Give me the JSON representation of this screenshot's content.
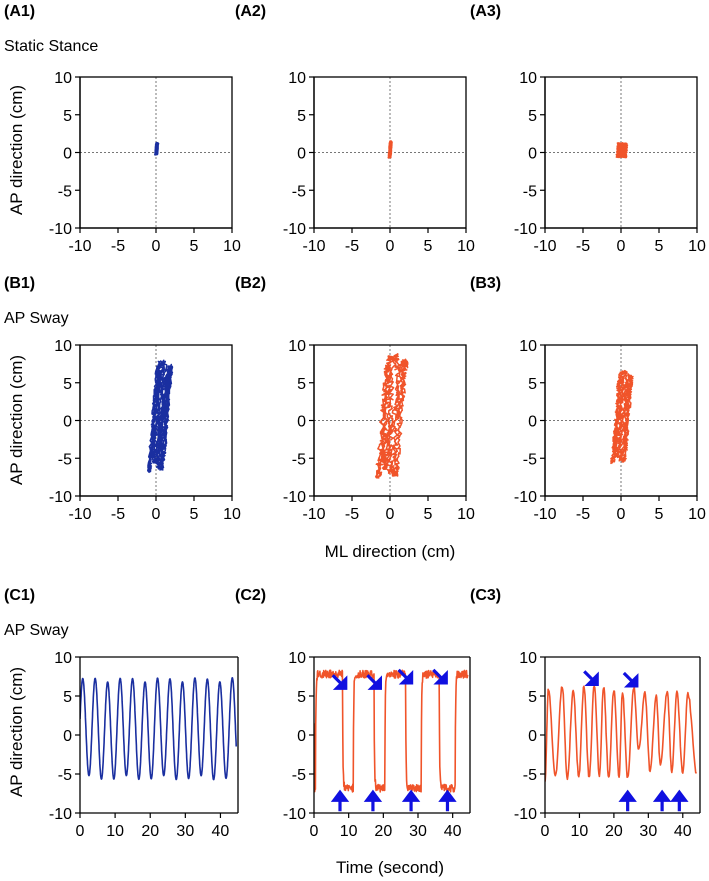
{
  "panel_labels": [
    "(A1)",
    "(A2)",
    "(A3)",
    "(B1)",
    "(B2)",
    "(B3)",
    "(C1)",
    "(C2)",
    "(C3)"
  ],
  "row_titles": {
    "a": "Static Stance",
    "b": "AP Sway",
    "c": "AP Sway"
  },
  "shared_labels": {
    "ylabel": "AP direction (cm)",
    "xlabel_ml": "ML direction (cm)",
    "xlabel_time": "Time (second)"
  },
  "colors": {
    "blue": "#1a2fa0",
    "orange": "#f0542a",
    "arrow": "#1010e0"
  },
  "chart_data": [
    {
      "id": "A1",
      "type": "line",
      "title": "(A1)",
      "color": "blue",
      "xlim": [
        -10,
        10
      ],
      "ylim": [
        -10,
        10
      ],
      "xticks": [
        -10,
        -5,
        0,
        5,
        10
      ],
      "yticks": [
        -10,
        -5,
        0,
        5,
        10
      ],
      "zero_lines": true,
      "trace": {
        "kind": "sway",
        "amp_x": 0.15,
        "amp_y": 0.8,
        "cx": 0.05,
        "cy": 0.5,
        "cycles": 8
      }
    },
    {
      "id": "A2",
      "type": "line",
      "title": "(A2)",
      "color": "orange",
      "xlim": [
        -10,
        10
      ],
      "ylim": [
        -10,
        10
      ],
      "xticks": [
        -10,
        -5,
        0,
        5,
        10
      ],
      "yticks": [
        -10,
        -5,
        0,
        5,
        10
      ],
      "zero_lines": true,
      "trace": {
        "kind": "sway",
        "amp_x": 0.15,
        "amp_y": 1.1,
        "cx": 0.0,
        "cy": 0.4,
        "cycles": 8
      }
    },
    {
      "id": "A3",
      "type": "line",
      "title": "(A3)",
      "color": "orange",
      "xlim": [
        -10,
        10
      ],
      "ylim": [
        -10,
        10
      ],
      "xticks": [
        -10,
        -5,
        0,
        5,
        10
      ],
      "yticks": [
        -10,
        -5,
        0,
        5,
        10
      ],
      "zero_lines": true,
      "trace": {
        "kind": "blob",
        "amp_x": 0.7,
        "amp_y": 1.0,
        "cx": 0.1,
        "cy": 0.3,
        "cycles": 14
      }
    },
    {
      "id": "B1",
      "type": "line",
      "title": "(B1)",
      "color": "blue",
      "xlim": [
        -10,
        10
      ],
      "ylim": [
        -10,
        10
      ],
      "xticks": [
        -10,
        -5,
        0,
        5,
        10
      ],
      "yticks": [
        -10,
        -5,
        0,
        5,
        10
      ],
      "zero_lines": true,
      "trace": {
        "kind": "sway",
        "amp_x": 0.9,
        "amp_y": 7.2,
        "cx": 0.5,
        "cy": 0.6,
        "cycles": 12
      }
    },
    {
      "id": "B2",
      "type": "line",
      "title": "(B2)",
      "color": "orange",
      "xlim": [
        -10,
        10
      ],
      "ylim": [
        -10,
        10
      ],
      "xticks": [
        -10,
        -5,
        0,
        5,
        10
      ],
      "yticks": [
        -10,
        -5,
        0,
        5,
        10
      ],
      "zero_lines": true,
      "trace": {
        "kind": "sway",
        "amp_x": 1.2,
        "amp_y": 8.0,
        "cx": 0.2,
        "cy": 0.6,
        "cycles": 5
      }
    },
    {
      "id": "B3",
      "type": "line",
      "title": "(B3)",
      "color": "orange",
      "xlim": [
        -10,
        10
      ],
      "ylim": [
        -10,
        10
      ],
      "xticks": [
        -10,
        -5,
        0,
        5,
        10
      ],
      "yticks": [
        -10,
        -5,
        0,
        5,
        10
      ],
      "zero_lines": true,
      "trace": {
        "kind": "sway",
        "amp_x": 0.8,
        "amp_y": 6.0,
        "cx": 0.1,
        "cy": 0.5,
        "cycles": 7
      }
    },
    {
      "id": "C1",
      "type": "line",
      "title": "(C1)",
      "color": "blue",
      "xlim": [
        0,
        45
      ],
      "ylim": [
        -10,
        10
      ],
      "xticks": [
        0,
        10,
        20,
        30,
        40
      ],
      "yticks": [
        -10,
        -5,
        0,
        5,
        10
      ],
      "zero_lines": false,
      "trace": {
        "kind": "sine",
        "period": 3.55,
        "mean": 0.8,
        "amp": 6.3,
        "phase": 0.2
      }
    },
    {
      "id": "C2",
      "type": "line",
      "title": "(C2)",
      "color": "orange",
      "xlim": [
        0,
        45
      ],
      "ylim": [
        -10,
        10
      ],
      "xticks": [
        0,
        10,
        20,
        30,
        40
      ],
      "yticks": [
        -10,
        -5,
        0,
        5,
        10
      ],
      "zero_lines": false,
      "trace": {
        "kind": "square",
        "high": [
          [
            0.5,
            8.2
          ],
          [
            11.3,
            17.3
          ],
          [
            20.5,
            26.5
          ],
          [
            31.0,
            36.2
          ],
          [
            40.8,
            44.5
          ]
        ],
        "high_level": 7.8,
        "low_level": -6.8
      },
      "arrows_down": [
        [
          8,
          6.5
        ],
        [
          18,
          6.5
        ],
        [
          27,
          7.2
        ],
        [
          37,
          7.2
        ]
      ],
      "arrows_up": [
        [
          7.5,
          -8.5
        ],
        [
          17,
          -8.5
        ],
        [
          28,
          -8.5
        ],
        [
          38.5,
          -8.5
        ]
      ]
    },
    {
      "id": "C3",
      "type": "line",
      "title": "(C3)",
      "color": "orange",
      "xlim": [
        0,
        45
      ],
      "ylim": [
        -10,
        10
      ],
      "xticks": [
        0,
        10,
        20,
        30,
        40
      ],
      "yticks": [
        -10,
        -5,
        0,
        5,
        10
      ],
      "zero_lines": false,
      "trace": {
        "kind": "irregular",
        "peaks": [
          [
            1,
            6
          ],
          [
            5,
            6.3
          ],
          [
            8.2,
            5.9
          ],
          [
            11.3,
            6.2
          ],
          [
            14.3,
            6.3
          ],
          [
            17,
            6.2
          ],
          [
            20,
            5.8
          ],
          [
            22.5,
            5.6
          ],
          [
            25.8,
            6.1
          ],
          [
            29,
            5.5
          ],
          [
            32.3,
            5.0
          ],
          [
            35.5,
            5.6
          ],
          [
            38.3,
            5.4
          ],
          [
            41.5,
            5.3
          ]
        ],
        "troughs": [
          [
            0,
            -5.9
          ],
          [
            3,
            -5.3
          ],
          [
            6.5,
            -5.6
          ],
          [
            9.8,
            -5.4
          ],
          [
            12.8,
            -5.5
          ],
          [
            15.8,
            -5.2
          ],
          [
            18.5,
            -5.4
          ],
          [
            21.5,
            -5.3
          ],
          [
            24,
            -5.6
          ],
          [
            27.2,
            -2.0
          ],
          [
            30.5,
            -4.6
          ],
          [
            33.5,
            -3.8
          ],
          [
            36.8,
            -4.7
          ],
          [
            40,
            -4.8
          ],
          [
            44,
            -4.9
          ]
        ]
      },
      "arrows_down": [
        [
          14,
          7.0
        ],
        [
          25.5,
          6.8
        ]
      ],
      "arrows_up": [
        [
          24,
          -8.5
        ],
        [
          34,
          -8.5
        ],
        [
          39,
          -8.5
        ]
      ]
    }
  ]
}
